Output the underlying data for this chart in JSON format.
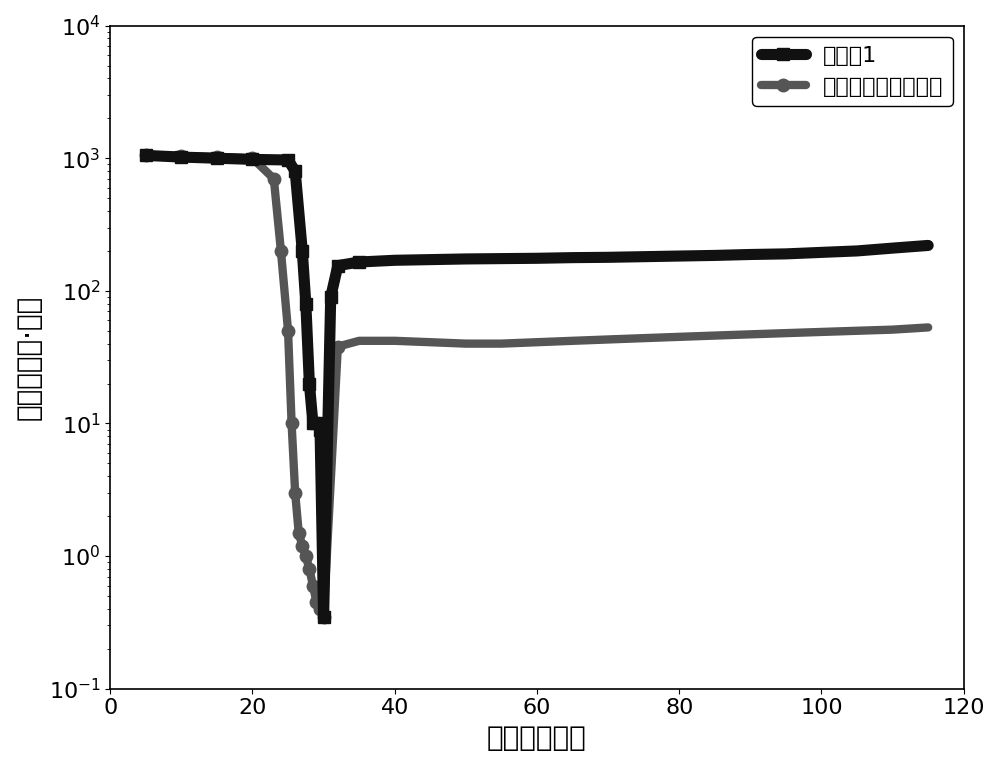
{
  "title": "",
  "xlabel": "时间／（秒）",
  "ylabel": "粘度／（底·秒）",
  "xlim": [
    0,
    120
  ],
  "ylim_log": [
    0.1,
    10000
  ],
  "background_color": "#ffffff",
  "legend1_label": "实施例1",
  "legend2_label": "国外某型号正极浆料",
  "series1_color": "#111111",
  "series2_color": "#555555",
  "series1_linewidth": 8,
  "series2_linewidth": 6,
  "marker1": "s",
  "marker2": "o",
  "markersize1": 9,
  "markersize2": 9,
  "font_size_label": 20,
  "font_size_tick": 16,
  "font_size_legend": 16,
  "series1_x": [
    5,
    10,
    15,
    20,
    25,
    26,
    27,
    27.5,
    28,
    28.5,
    29,
    29.5,
    30,
    31,
    32,
    35,
    40,
    45,
    50,
    55,
    60,
    65,
    70,
    75,
    80,
    85,
    90,
    95,
    100,
    105,
    110,
    115
  ],
  "series1_y": [
    1050,
    1020,
    1000,
    980,
    970,
    800,
    200,
    80,
    20,
    10,
    10,
    9,
    0.35,
    90,
    155,
    165,
    170,
    172,
    174,
    175,
    176,
    178,
    179,
    181,
    183,
    185,
    188,
    190,
    195,
    200,
    210,
    220
  ],
  "series2_x": [
    5,
    10,
    15,
    20,
    23,
    24,
    25,
    25.5,
    26,
    26.5,
    27,
    27.5,
    28,
    28.5,
    29,
    29.5,
    30,
    32,
    35,
    40,
    45,
    50,
    55,
    60,
    65,
    70,
    75,
    80,
    85,
    90,
    95,
    100,
    105,
    110,
    115
  ],
  "series2_y": [
    1060,
    1040,
    1020,
    1000,
    700,
    200,
    50,
    10,
    3,
    1.5,
    1.2,
    1.0,
    0.8,
    0.6,
    0.45,
    0.4,
    0.35,
    38,
    42,
    42,
    41,
    40,
    40,
    41,
    42,
    43,
    44,
    45,
    46,
    47,
    48,
    49,
    50,
    51,
    53
  ]
}
